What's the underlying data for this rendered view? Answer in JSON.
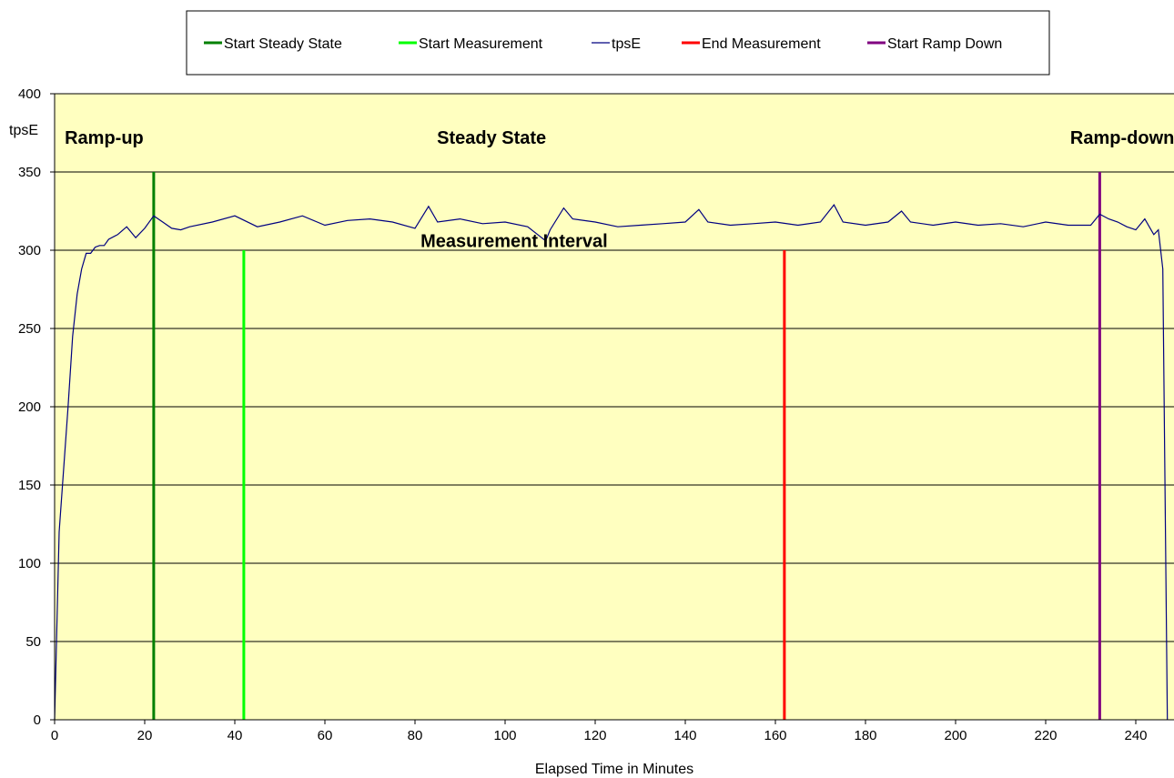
{
  "chart_data": {
    "type": "line",
    "xlabel": "Elapsed Time in Minutes",
    "ylabel": "tpsE",
    "xlim": [
      0,
      250
    ],
    "ylim": [
      0,
      400
    ],
    "xticks": [
      0,
      20,
      40,
      60,
      80,
      100,
      120,
      140,
      160,
      180,
      200,
      220,
      240
    ],
    "yticks": [
      0,
      50,
      100,
      150,
      200,
      250,
      300,
      350,
      400
    ],
    "grid": "horizontal",
    "plot_background": "#ffffc0",
    "legend_position": "top",
    "legend": [
      "Start Steady State",
      "Start Measurement",
      "tpsE",
      "End Measurement",
      "Start Ramp Down"
    ],
    "markers": [
      {
        "name": "Start Steady State",
        "x": 22,
        "y": [
          0,
          350
        ],
        "color": "#008000"
      },
      {
        "name": "Start Measurement",
        "x": 42,
        "y": [
          0,
          300
        ],
        "color": "#00ff00"
      },
      {
        "name": "End Measurement",
        "x": 162,
        "y": [
          0,
          300
        ],
        "color": "#ff0000"
      },
      {
        "name": "Start Ramp Down",
        "x": 232,
        "y": [
          0,
          350
        ],
        "color": "#800080"
      }
    ],
    "series": [
      {
        "name": "tpsE",
        "color": "#000080",
        "x": [
          0,
          1,
          2,
          3,
          4,
          5,
          6,
          7,
          8,
          9,
          10,
          11,
          12,
          14,
          16,
          18,
          20,
          22,
          24,
          26,
          28,
          30,
          35,
          40,
          45,
          50,
          55,
          60,
          65,
          70,
          75,
          80,
          83,
          85,
          90,
          95,
          100,
          105,
          109,
          110,
          113,
          115,
          120,
          125,
          130,
          135,
          140,
          143,
          145,
          150,
          155,
          160,
          165,
          170,
          173,
          175,
          180,
          185,
          188,
          190,
          195,
          200,
          205,
          210,
          215,
          220,
          225,
          230,
          232,
          234,
          236,
          238,
          240,
          242,
          244,
          245,
          246,
          247
        ],
        "y": [
          0,
          120,
          160,
          200,
          245,
          272,
          288,
          298,
          298,
          302,
          303,
          303,
          307,
          310,
          315,
          308,
          314,
          322,
          318,
          314,
          313,
          315,
          318,
          322,
          315,
          318,
          322,
          316,
          319,
          320,
          318,
          314,
          328,
          318,
          320,
          317,
          318,
          315,
          306,
          313,
          327,
          320,
          318,
          315,
          316,
          317,
          318,
          326,
          318,
          316,
          317,
          318,
          316,
          318,
          329,
          318,
          316,
          318,
          325,
          318,
          316,
          318,
          316,
          317,
          315,
          318,
          316,
          316,
          323,
          320,
          318,
          315,
          313,
          320,
          310,
          313,
          288,
          0
        ]
      }
    ],
    "annotations": [
      {
        "text": "Ramp-up",
        "x": 11,
        "y": 372
      },
      {
        "text": "Steady State",
        "x": 97,
        "y": 372
      },
      {
        "text": "Ramp-down",
        "x": 237,
        "y": 372
      },
      {
        "text": "Measurement Interval",
        "x": 102,
        "y": 306
      }
    ]
  }
}
